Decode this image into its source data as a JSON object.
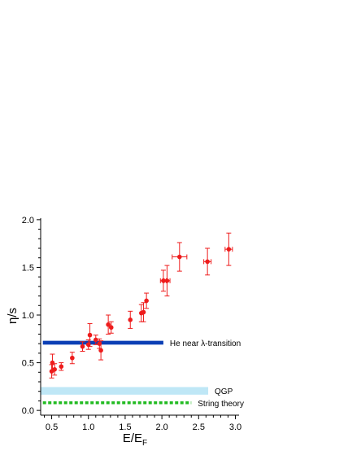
{
  "chart_data": {
    "type": "scatter",
    "title": "",
    "xlabel": "E/E",
    "xlabel_sub": "F",
    "ylabel": "η/s",
    "xlim": [
      0.35,
      3.05
    ],
    "ylim": [
      -0.05,
      2.05
    ],
    "x_ticks": [
      0.5,
      1.0,
      1.5,
      2.0,
      2.5,
      3.0
    ],
    "x_tick_labels": [
      "0.5",
      "1.0",
      "1.5",
      "2.0",
      "2.5",
      "3.0"
    ],
    "y_ticks": [
      0.0,
      0.5,
      1.0,
      1.5,
      2.0
    ],
    "y_tick_labels": [
      "0.0",
      "0.5",
      "1.0",
      "1.5",
      "2.0"
    ],
    "grid": false,
    "colors": {
      "points": "#ee1c1c",
      "he_band": "#0b3fb5",
      "qgp_band": "#bfe7f6",
      "string_theory": "#22bb22",
      "axis": "#000000"
    },
    "points": [
      {
        "x": 0.5,
        "y": 0.41,
        "yerr": 0.07,
        "xerr": 0.0
      },
      {
        "x": 0.51,
        "y": 0.5,
        "yerr": 0.09,
        "xerr": 0.0
      },
      {
        "x": 0.54,
        "y": 0.43,
        "yerr": 0.06,
        "xerr": 0.0
      },
      {
        "x": 0.63,
        "y": 0.46,
        "yerr": 0.04,
        "xerr": 0.0
      },
      {
        "x": 0.78,
        "y": 0.55,
        "yerr": 0.06,
        "xerr": 0.0
      },
      {
        "x": 0.92,
        "y": 0.67,
        "yerr": 0.05,
        "xerr": 0.0
      },
      {
        "x": 1.0,
        "y": 0.69,
        "yerr": 0.05,
        "xerr": 0.0
      },
      {
        "x": 1.02,
        "y": 0.79,
        "yerr": 0.12,
        "xerr": 0.0
      },
      {
        "x": 1.1,
        "y": 0.74,
        "yerr": 0.05,
        "xerr": 0.0
      },
      {
        "x": 1.15,
        "y": 0.7,
        "yerr": 0.05,
        "xerr": 0.0
      },
      {
        "x": 1.17,
        "y": 0.63,
        "yerr": 0.1,
        "xerr": 0.0
      },
      {
        "x": 1.27,
        "y": 0.9,
        "yerr": 0.1,
        "xerr": 0.0
      },
      {
        "x": 1.31,
        "y": 0.87,
        "yerr": 0.06,
        "xerr": 0.0
      },
      {
        "x": 1.57,
        "y": 0.95,
        "yerr": 0.09,
        "xerr": 0.0
      },
      {
        "x": 1.72,
        "y": 1.02,
        "yerr": 0.09,
        "xerr": 0.0
      },
      {
        "x": 1.75,
        "y": 1.03,
        "yerr": 0.1,
        "xerr": 0.0
      },
      {
        "x": 1.79,
        "y": 1.15,
        "yerr": 0.08,
        "xerr": 0.0
      },
      {
        "x": 2.02,
        "y": 1.36,
        "yerr": 0.11,
        "xerr": 0.04
      },
      {
        "x": 2.07,
        "y": 1.36,
        "yerr": 0.16,
        "xerr": 0.04
      },
      {
        "x": 2.24,
        "y": 1.61,
        "yerr": 0.15,
        "xerr": 0.1
      },
      {
        "x": 2.62,
        "y": 1.56,
        "yerr": 0.14,
        "xerr": 0.05
      },
      {
        "x": 2.91,
        "y": 1.69,
        "yerr": 0.17,
        "xerr": 0.05
      }
    ],
    "bands": [
      {
        "name": "He near λ-transition",
        "x_start": 0.38,
        "x_end": 2.02,
        "y": 0.71,
        "y_half": 0.02,
        "color": "#0b3fb5",
        "style": "solid"
      },
      {
        "name": "QGP",
        "x_start": 0.35,
        "x_end": 2.63,
        "y": 0.205,
        "y_half": 0.04,
        "color": "#bfe7f6",
        "style": "solid"
      },
      {
        "name": "String theory",
        "x_start": 0.38,
        "x_end": 2.4,
        "y": 0.08,
        "y_half": 0.012,
        "color": "#22bb22",
        "style": "dotted"
      }
    ]
  }
}
